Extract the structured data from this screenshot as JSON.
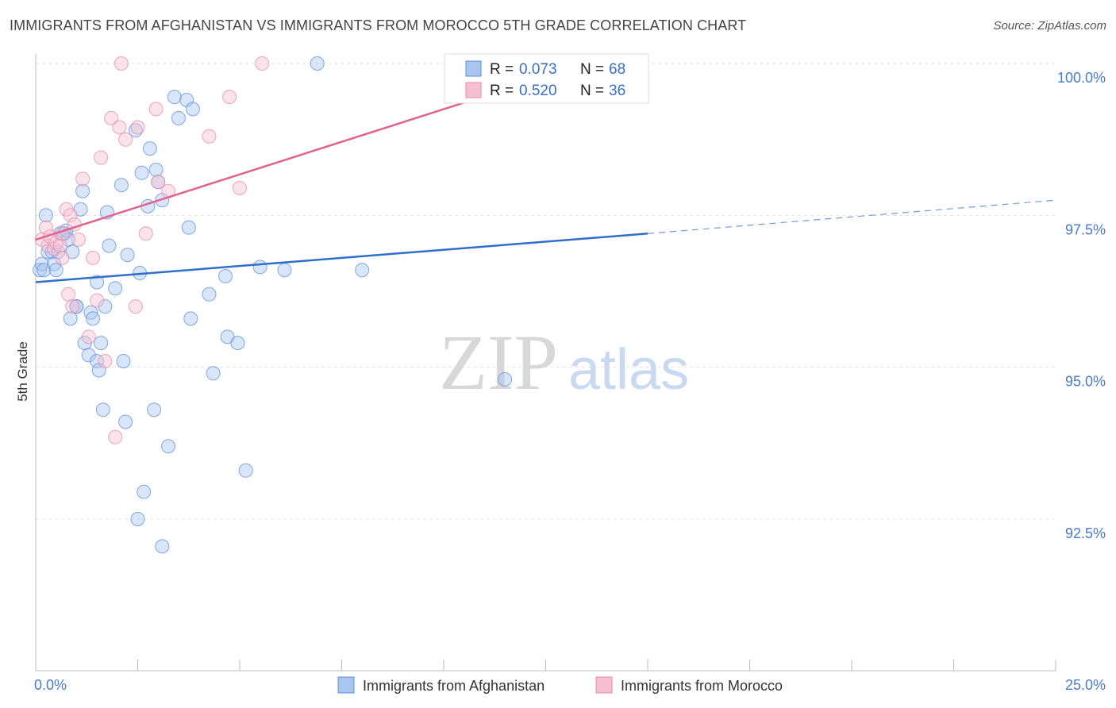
{
  "header": {
    "title": "IMMIGRANTS FROM AFGHANISTAN VS IMMIGRANTS FROM MOROCCO 5TH GRADE CORRELATION CHART",
    "source": "Source: ZipAtlas.com"
  },
  "watermark": {
    "part1": "ZIP",
    "part2": "atlas"
  },
  "chart_data": {
    "type": "scatter",
    "ylabel": "5th Grade",
    "xlim": [
      0,
      25
    ],
    "ylim": [
      90.6,
      100.3
    ],
    "x_tick_labels": [
      {
        "value": 0,
        "label": "0.0%"
      },
      {
        "value": 25,
        "label": "25.0%"
      }
    ],
    "y_ticks": [
      {
        "value": 100.0,
        "label": "100.0%"
      },
      {
        "value": 97.5,
        "label": "97.5%"
      },
      {
        "value": 95.0,
        "label": "95.0%"
      },
      {
        "value": 92.5,
        "label": "92.5%"
      }
    ],
    "grid": true,
    "legend_position": "bottom",
    "stats": [
      {
        "r_label": "R = ",
        "r_value": "0.073",
        "n_label": "N = ",
        "n_value": "68"
      },
      {
        "r_label": "R = ",
        "r_value": "0.520",
        "n_label": "N = ",
        "n_value": "36"
      }
    ],
    "series": [
      {
        "name": "Immigrants from Afghanistan",
        "color": "#5b8fd9",
        "fill": "#aac6f0",
        "trend": {
          "x0": 0,
          "y0": 96.4,
          "x1": 15,
          "y1": 97.2,
          "dash_x1": 25,
          "dash_y1": 97.75
        },
        "points": [
          [
            0.1,
            96.6
          ],
          [
            0.15,
            96.7
          ],
          [
            0.2,
            96.6
          ],
          [
            0.25,
            97.5
          ],
          [
            0.3,
            96.9
          ],
          [
            0.4,
            96.9
          ],
          [
            0.45,
            96.7
          ],
          [
            0.5,
            96.6
          ],
          [
            0.55,
            96.9
          ],
          [
            0.6,
            97.2
          ],
          [
            0.7,
            97.2
          ],
          [
            0.75,
            97.25
          ],
          [
            0.8,
            97.1
          ],
          [
            0.9,
            96.9
          ],
          [
            1.0,
            96.0
          ],
          [
            0.85,
            95.8
          ],
          [
            1.0,
            96.0
          ],
          [
            1.1,
            97.6
          ],
          [
            1.15,
            97.9
          ],
          [
            1.2,
            95.4
          ],
          [
            1.3,
            95.2
          ],
          [
            1.35,
            95.9
          ],
          [
            1.4,
            95.8
          ],
          [
            1.5,
            95.1
          ],
          [
            1.5,
            96.4
          ],
          [
            1.55,
            94.95
          ],
          [
            1.6,
            95.4
          ],
          [
            1.65,
            94.3
          ],
          [
            1.7,
            96.0
          ],
          [
            1.75,
            97.55
          ],
          [
            1.8,
            97.0
          ],
          [
            1.95,
            96.3
          ],
          [
            2.1,
            98.0
          ],
          [
            2.15,
            95.1
          ],
          [
            2.2,
            94.1
          ],
          [
            2.25,
            96.85
          ],
          [
            2.45,
            98.9
          ],
          [
            2.5,
            92.5
          ],
          [
            2.55,
            96.55
          ],
          [
            2.6,
            98.2
          ],
          [
            2.65,
            92.95
          ],
          [
            2.75,
            97.65
          ],
          [
            2.8,
            98.6
          ],
          [
            2.9,
            94.3
          ],
          [
            2.95,
            98.25
          ],
          [
            3.0,
            98.05
          ],
          [
            3.1,
            97.75
          ],
          [
            3.1,
            92.05
          ],
          [
            3.25,
            93.7
          ],
          [
            3.4,
            99.45
          ],
          [
            3.5,
            99.1
          ],
          [
            3.7,
            99.4
          ],
          [
            3.75,
            97.3
          ],
          [
            3.8,
            95.8
          ],
          [
            3.85,
            99.25
          ],
          [
            4.25,
            96.2
          ],
          [
            4.35,
            94.9
          ],
          [
            4.65,
            96.5
          ],
          [
            4.7,
            95.5
          ],
          [
            4.95,
            95.4
          ],
          [
            5.15,
            93.3
          ],
          [
            5.5,
            96.65
          ],
          [
            6.1,
            96.6
          ],
          [
            6.9,
            100.0
          ],
          [
            8.0,
            96.6
          ],
          [
            10.3,
            100.0
          ],
          [
            11.5,
            94.8
          ],
          [
            13.3,
            100.0
          ]
        ]
      },
      {
        "name": "Immigrants from Morocco",
        "color": "#e68aa8",
        "fill": "#f6c0d2",
        "trend": {
          "x0": 0,
          "y0": 97.1,
          "x1": 13.5,
          "y1": 100.0
        },
        "points": [
          [
            0.15,
            97.1
          ],
          [
            0.25,
            97.3
          ],
          [
            0.3,
            97.0
          ],
          [
            0.35,
            97.15
          ],
          [
            0.45,
            96.95
          ],
          [
            0.5,
            97.05
          ],
          [
            0.6,
            97.0
          ],
          [
            0.65,
            97.2
          ],
          [
            0.65,
            96.8
          ],
          [
            0.75,
            97.6
          ],
          [
            0.8,
            96.2
          ],
          [
            0.85,
            97.5
          ],
          [
            0.9,
            96.0
          ],
          [
            0.95,
            97.35
          ],
          [
            1.05,
            97.1
          ],
          [
            1.15,
            98.1
          ],
          [
            1.3,
            95.5
          ],
          [
            1.4,
            96.8
          ],
          [
            1.5,
            96.1
          ],
          [
            1.6,
            98.45
          ],
          [
            1.7,
            95.1
          ],
          [
            1.85,
            99.1
          ],
          [
            1.95,
            93.85
          ],
          [
            2.05,
            98.95
          ],
          [
            2.1,
            100.0
          ],
          [
            2.2,
            98.75
          ],
          [
            2.45,
            96.0
          ],
          [
            2.5,
            98.95
          ],
          [
            2.7,
            97.2
          ],
          [
            2.95,
            99.25
          ],
          [
            3.0,
            98.05
          ],
          [
            3.25,
            97.9
          ],
          [
            4.25,
            98.8
          ],
          [
            4.75,
            99.45
          ],
          [
            5.0,
            97.95
          ],
          [
            5.55,
            100.0
          ]
        ]
      }
    ]
  }
}
